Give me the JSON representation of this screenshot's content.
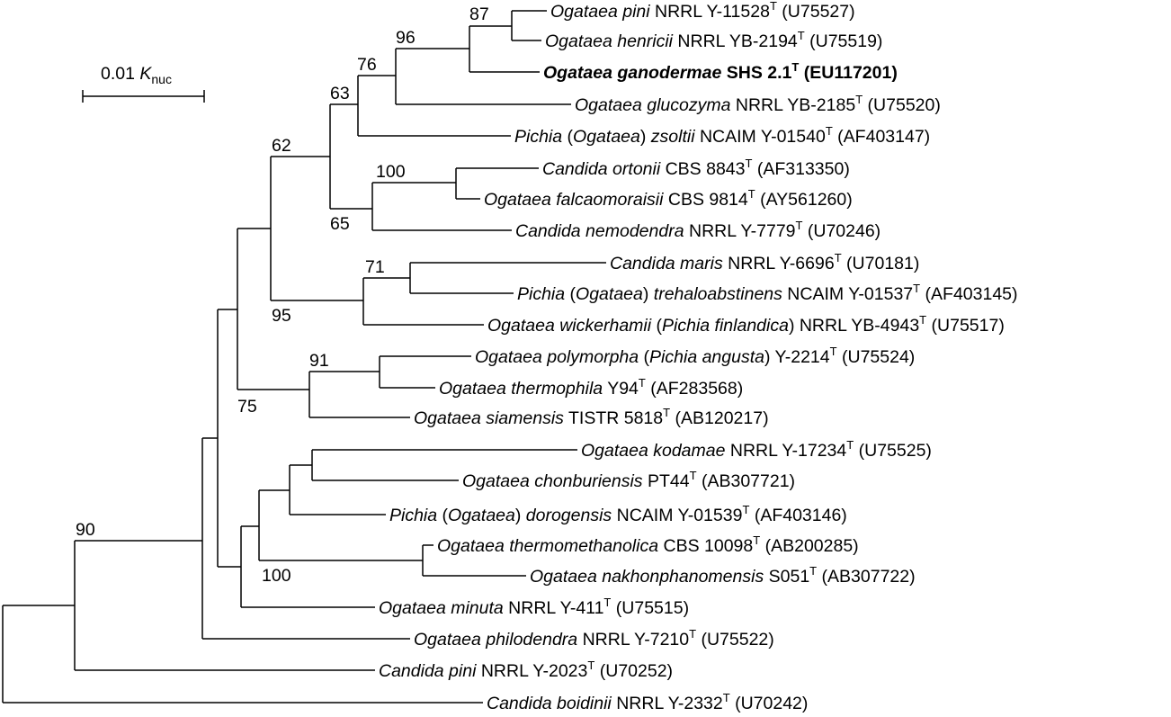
{
  "scale_bar": {
    "value": "0.01",
    "symbol": "K",
    "subscript": "nuc"
  },
  "taxa": [
    {
      "id": "t1",
      "parts": [
        {
          "t": "Ogataea pini",
          "i": true
        },
        {
          "t": " NRRL Y-11528"
        },
        {
          "t": "T",
          "sup": true
        },
        {
          "t": " (U75527)"
        }
      ]
    },
    {
      "id": "t2",
      "parts": [
        {
          "t": "Ogataea henricii",
          "i": true
        },
        {
          "t": " NRRL YB-2194"
        },
        {
          "t": "T",
          "sup": true
        },
        {
          "t": " (U75519)"
        }
      ]
    },
    {
      "id": "t3",
      "bold": true,
      "parts": [
        {
          "t": "Ogataea ganodermae",
          "i": true
        },
        {
          "t": " SHS 2.1"
        },
        {
          "t": "T",
          "sup": true
        },
        {
          "t": " (EU117201)"
        }
      ]
    },
    {
      "id": "t4",
      "parts": [
        {
          "t": "Ogataea glucozyma",
          "i": true
        },
        {
          "t": " NRRL YB-2185"
        },
        {
          "t": "T",
          "sup": true
        },
        {
          "t": " (U75520)"
        }
      ]
    },
    {
      "id": "t5",
      "parts": [
        {
          "t": "Pichia",
          "i": true
        },
        {
          "t": " ("
        },
        {
          "t": "Ogataea",
          "i": true
        },
        {
          "t": ") "
        },
        {
          "t": "zsoltii",
          "i": true
        },
        {
          "t": " NCAIM Y-01540"
        },
        {
          "t": "T",
          "sup": true
        },
        {
          "t": " (AF403147)"
        }
      ]
    },
    {
      "id": "t6",
      "parts": [
        {
          "t": "Candida ortonii",
          "i": true
        },
        {
          "t": " CBS 8843"
        },
        {
          "t": "T",
          "sup": true
        },
        {
          "t": " (AF313350)"
        }
      ]
    },
    {
      "id": "t7",
      "parts": [
        {
          "t": "Ogataea falcaomoraisii",
          "i": true
        },
        {
          "t": " CBS 9814"
        },
        {
          "t": "T",
          "sup": true
        },
        {
          "t": " (AY561260)"
        }
      ]
    },
    {
      "id": "t8",
      "parts": [
        {
          "t": "Candida nemodendra",
          "i": true
        },
        {
          "t": " NRRL Y-7779"
        },
        {
          "t": "T",
          "sup": true
        },
        {
          "t": " (U70246)"
        }
      ]
    },
    {
      "id": "t9",
      "parts": [
        {
          "t": "Candida maris",
          "i": true
        },
        {
          "t": " NRRL Y-6696"
        },
        {
          "t": "T",
          "sup": true
        },
        {
          "t": " (U70181)"
        }
      ]
    },
    {
      "id": "t10",
      "parts": [
        {
          "t": "Pichia",
          "i": true
        },
        {
          "t": " ("
        },
        {
          "t": "Ogataea",
          "i": true
        },
        {
          "t": ") "
        },
        {
          "t": "trehaloabstinens",
          "i": true
        },
        {
          "t": " NCAIM Y-01537"
        },
        {
          "t": "T",
          "sup": true
        },
        {
          "t": " (AF403145)"
        }
      ]
    },
    {
      "id": "t11",
      "parts": [
        {
          "t": "Ogataea wickerhamii",
          "i": true
        },
        {
          "t": " ("
        },
        {
          "t": "Pichia finlandica",
          "i": true
        },
        {
          "t": ") NRRL YB-4943"
        },
        {
          "t": "T",
          "sup": true
        },
        {
          "t": " (U75517)"
        }
      ]
    },
    {
      "id": "t12",
      "parts": [
        {
          "t": "Ogataea polymorpha",
          "i": true
        },
        {
          "t": " ("
        },
        {
          "t": "Pichia angusta",
          "i": true
        },
        {
          "t": ") Y-2214"
        },
        {
          "t": "T",
          "sup": true
        },
        {
          "t": " (U75524)"
        }
      ]
    },
    {
      "id": "t13",
      "parts": [
        {
          "t": "Ogataea thermophila",
          "i": true
        },
        {
          "t": " Y94"
        },
        {
          "t": "T",
          "sup": true
        },
        {
          "t": " (AF283568)"
        }
      ]
    },
    {
      "id": "t14",
      "parts": [
        {
          "t": "Ogataea siamensis",
          "i": true
        },
        {
          "t": " TISTR 5818"
        },
        {
          "t": "T",
          "sup": true
        },
        {
          "t": " (AB120217)"
        }
      ]
    },
    {
      "id": "t15",
      "parts": [
        {
          "t": "Ogataea kodamae",
          "i": true
        },
        {
          "t": " NRRL Y-17234"
        },
        {
          "t": "T",
          "sup": true
        },
        {
          "t": " (U75525)"
        }
      ]
    },
    {
      "id": "t16",
      "parts": [
        {
          "t": "Ogataea chonburiensis",
          "i": true
        },
        {
          "t": " PT44"
        },
        {
          "t": "T",
          "sup": true
        },
        {
          "t": " (AB307721)"
        }
      ]
    },
    {
      "id": "t17",
      "parts": [
        {
          "t": "Pichia",
          "i": true
        },
        {
          "t": " ("
        },
        {
          "t": "Ogataea",
          "i": true
        },
        {
          "t": ") "
        },
        {
          "t": "dorogensis",
          "i": true
        },
        {
          "t": " NCAIM Y-01539"
        },
        {
          "t": "T",
          "sup": true
        },
        {
          "t": " (AF403146)"
        }
      ]
    },
    {
      "id": "t18",
      "parts": [
        {
          "t": "Ogataea thermomethanolica",
          "i": true
        },
        {
          "t": " CBS 10098"
        },
        {
          "t": "T",
          "sup": true
        },
        {
          "t": " (AB200285)"
        }
      ]
    },
    {
      "id": "t19",
      "parts": [
        {
          "t": "Ogataea nakhonphanomensis",
          "i": true
        },
        {
          "t": " S051"
        },
        {
          "t": "T",
          "sup": true
        },
        {
          "t": " (AB307722)"
        }
      ]
    },
    {
      "id": "t20",
      "parts": [
        {
          "t": "Ogataea minuta",
          "i": true
        },
        {
          "t": " NRRL Y-411"
        },
        {
          "t": "T",
          "sup": true
        },
        {
          "t": " (U75515)"
        }
      ]
    },
    {
      "id": "t21",
      "parts": [
        {
          "t": "Ogataea philodendra",
          "i": true
        },
        {
          "t": " NRRL Y-7210"
        },
        {
          "t": "T",
          "sup": true
        },
        {
          "t": " (U75522)"
        }
      ]
    },
    {
      "id": "t22",
      "parts": [
        {
          "t": "Candida pini",
          "i": true
        },
        {
          "t": " NRRL Y-2023"
        },
        {
          "t": "T",
          "sup": true
        },
        {
          "t": " (U70252)"
        }
      ]
    },
    {
      "id": "t23",
      "parts": [
        {
          "t": "Candida boidinii",
          "i": true
        },
        {
          "t": " NRRL Y-2332"
        },
        {
          "t": "T",
          "sup": true
        },
        {
          "t": " (U70242)"
        }
      ]
    }
  ],
  "bootstrap": {
    "b87": "87",
    "b96": "96",
    "b76": "76",
    "b63": "63",
    "b62": "62",
    "b100a": "100",
    "b65": "65",
    "b71": "71",
    "b95": "95",
    "b91": "91",
    "b75": "75",
    "b100b": "100",
    "b90": "90"
  }
}
